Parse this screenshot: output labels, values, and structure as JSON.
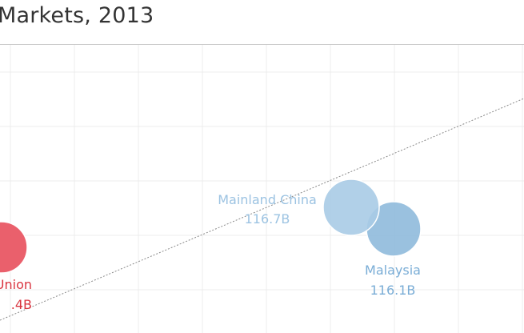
{
  "title": "Markets, 2013",
  "colors": {
    "red": "#e8525f",
    "light_blue": "#a9cbe6",
    "mid_blue": "#8fbadc",
    "red_text": "#d9343f",
    "light_blue_text": "#9cc3e2",
    "mid_blue_text": "#7aadd6",
    "grid": "#ececec",
    "trend": "#8a8a8a"
  },
  "chart_data": {
    "type": "scatter",
    "grid": true,
    "trend_line": "dotted",
    "points": [
      {
        "label": "an Union",
        "value_label": ".4B",
        "color_key": "red"
      },
      {
        "label": "Mainland China",
        "value_label": "116.7B",
        "color_key": "light_blue"
      },
      {
        "label": "Malaysia",
        "value_label": "116.1B",
        "color_key": "mid_blue"
      }
    ]
  }
}
